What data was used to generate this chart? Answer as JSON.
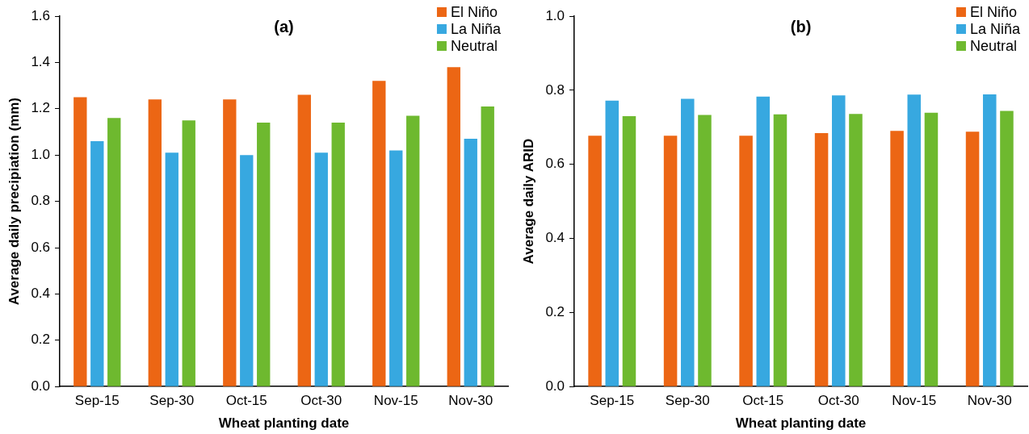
{
  "chart_data": [
    {
      "type": "bar",
      "title": "(a)",
      "xlabel": "Wheat planting date",
      "ylabel": "Average daily precipiation (mm)",
      "categories": [
        "Sep-15",
        "Sep-30",
        "Oct-15",
        "Oct-30",
        "Nov-15",
        "Nov-30"
      ],
      "ylim": [
        0,
        1.6
      ],
      "yticks": [
        {
          "value": 0,
          "label": "0.0"
        },
        {
          "value": 0.2,
          "label": "0.2"
        },
        {
          "value": 0.4,
          "label": "0.4"
        },
        {
          "value": 0.6,
          "label": "0.6"
        },
        {
          "value": 0.8,
          "label": "0.8"
        },
        {
          "value": 1,
          "label": "1.0"
        },
        {
          "value": 1.2,
          "label": "1.2"
        },
        {
          "value": 1.4,
          "label": "1.4"
        },
        {
          "value": 1.6,
          "label": "1.6"
        }
      ],
      "grid": false,
      "legend": "top right",
      "series": [
        {
          "name": "El Niño",
          "color": "#ec6614",
          "values": [
            1.25,
            1.24,
            1.24,
            1.26,
            1.32,
            1.38
          ]
        },
        {
          "name": "La Niña",
          "color": "#37a8e0",
          "values": [
            1.06,
            1.01,
            1.0,
            1.01,
            1.02,
            1.07
          ]
        },
        {
          "name": "Neutral",
          "color": "#6eb92f",
          "values": [
            1.16,
            1.15,
            1.14,
            1.14,
            1.17,
            1.21
          ]
        }
      ]
    },
    {
      "type": "bar",
      "title": "(b)",
      "xlabel": "Wheat planting date",
      "ylabel": "Average daily ARID",
      "categories": [
        "Sep-15",
        "Sep-30",
        "Oct-15",
        "Oct-30",
        "Nov-15",
        "Nov-30"
      ],
      "ylim": [
        0,
        1
      ],
      "yticks": [
        {
          "value": 0,
          "label": "0.0"
        },
        {
          "value": 0.2,
          "label": "0.2"
        },
        {
          "value": 0.4,
          "label": "0.4"
        },
        {
          "value": 0.6,
          "label": "0.6"
        },
        {
          "value": 0.8,
          "label": "0.8"
        },
        {
          "value": 1,
          "label": "1.0"
        }
      ],
      "grid": false,
      "legend": "top right",
      "series": [
        {
          "name": "El Niño",
          "color": "#ec6614",
          "values": [
            0.677,
            0.677,
            0.677,
            0.684,
            0.69,
            0.688
          ]
        },
        {
          "name": "La Niña",
          "color": "#37a8e0",
          "values": [
            0.772,
            0.777,
            0.783,
            0.786,
            0.788,
            0.789
          ]
        },
        {
          "name": "Neutral",
          "color": "#6eb92f",
          "values": [
            0.73,
            0.733,
            0.735,
            0.736,
            0.739,
            0.744
          ]
        }
      ]
    }
  ]
}
